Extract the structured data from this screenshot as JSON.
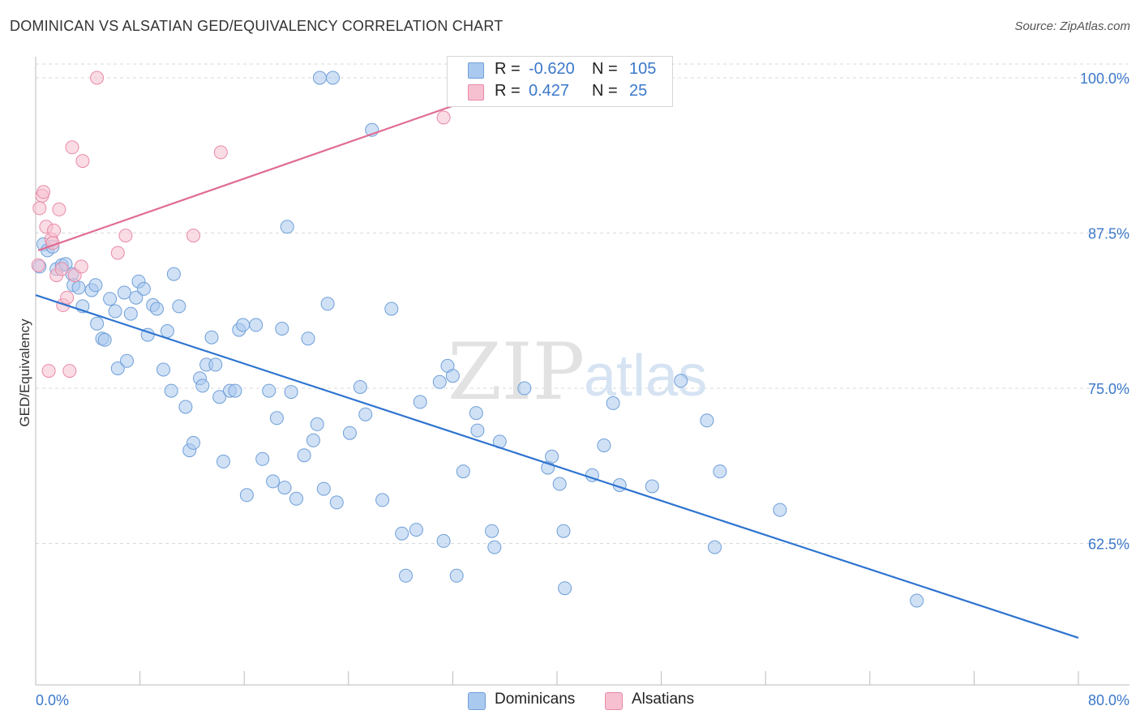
{
  "title": "DOMINICAN VS ALSATIAN GED/EQUIVALENCY CORRELATION CHART",
  "source": "Source: ZipAtlas.com",
  "watermark": {
    "zip": "ZIP",
    "atlas": "atlas"
  },
  "colors": {
    "dominican_fill": "#aac9ef",
    "dominican_stroke": "#6f9fd8",
    "dominican_line": "#2e74d0",
    "alsatian_fill": "#f6c0d0",
    "alsatian_stroke": "#e88aa6",
    "alsatian_line": "#e06c93",
    "accent_text": "#3b78c9",
    "grid": "#d9d9d9"
  },
  "legend": {
    "rows": [
      {
        "series": "Dominicans",
        "r_label": "R =",
        "r_value": "-0.620",
        "n_label": "N =",
        "n_value": "105"
      },
      {
        "series": "Alsatians",
        "r_label": "R =",
        "r_value": "0.427",
        "n_label": "N =",
        "n_value": "25"
      }
    ]
  },
  "chart_data": {
    "type": "scatter",
    "title": "DOMINICAN VS ALSATIAN GED/EQUIVALENCY CORRELATION CHART",
    "xlabel": "",
    "ylabel": "GED/Equivalency",
    "xlim": [
      0,
      80
    ],
    "ylim": [
      50,
      102
    ],
    "x_tick_labels": [
      "0.0%",
      "80.0%"
    ],
    "y_ticks": [
      62.5,
      75.0,
      87.5,
      100.0
    ],
    "y_tick_labels": [
      "62.5%",
      "75.0%",
      "87.5%",
      "100.0%"
    ],
    "grid": true,
    "legend_position": "bottom",
    "series": [
      {
        "name": "Dominicans",
        "trendline": {
          "x": [
            0,
            80
          ],
          "y": [
            82.5,
            54.9
          ]
        },
        "points": [
          [
            0.3,
            84.8
          ],
          [
            0.6,
            86.6
          ],
          [
            0.9,
            86.1
          ],
          [
            1.3,
            86.4
          ],
          [
            1.6,
            84.6
          ],
          [
            2.0,
            84.9
          ],
          [
            2.3,
            85.0
          ],
          [
            2.8,
            84.2
          ],
          [
            2.9,
            83.3
          ],
          [
            3.3,
            83.1
          ],
          [
            3.6,
            81.6
          ],
          [
            4.3,
            82.9
          ],
          [
            4.6,
            83.3
          ],
          [
            4.7,
            80.2
          ],
          [
            5.1,
            79.0
          ],
          [
            5.3,
            78.9
          ],
          [
            5.7,
            82.2
          ],
          [
            6.1,
            81.2
          ],
          [
            6.3,
            76.6
          ],
          [
            6.8,
            82.7
          ],
          [
            7.0,
            77.2
          ],
          [
            7.3,
            81.0
          ],
          [
            7.7,
            82.3
          ],
          [
            7.9,
            83.6
          ],
          [
            8.3,
            83.0
          ],
          [
            8.6,
            79.3
          ],
          [
            9.0,
            81.7
          ],
          [
            9.3,
            81.4
          ],
          [
            9.8,
            76.5
          ],
          [
            10.1,
            79.6
          ],
          [
            10.4,
            74.8
          ],
          [
            10.6,
            84.2
          ],
          [
            11.0,
            81.6
          ],
          [
            11.5,
            73.5
          ],
          [
            11.8,
            70.0
          ],
          [
            12.1,
            70.6
          ],
          [
            12.6,
            75.8
          ],
          [
            12.8,
            75.2
          ],
          [
            13.1,
            76.9
          ],
          [
            13.5,
            79.1
          ],
          [
            13.8,
            76.9
          ],
          [
            14.1,
            74.3
          ],
          [
            14.4,
            69.1
          ],
          [
            14.9,
            74.8
          ],
          [
            15.3,
            74.8
          ],
          [
            15.6,
            79.7
          ],
          [
            15.9,
            80.1
          ],
          [
            16.2,
            66.4
          ],
          [
            16.9,
            80.1
          ],
          [
            17.4,
            69.3
          ],
          [
            17.9,
            74.8
          ],
          [
            18.2,
            67.5
          ],
          [
            18.5,
            72.6
          ],
          [
            18.9,
            79.8
          ],
          [
            19.1,
            67.0
          ],
          [
            19.3,
            88.0
          ],
          [
            19.6,
            74.7
          ],
          [
            20.0,
            66.1
          ],
          [
            20.6,
            69.6
          ],
          [
            20.9,
            79.0
          ],
          [
            21.3,
            70.8
          ],
          [
            21.6,
            72.1
          ],
          [
            21.8,
            100.0
          ],
          [
            22.1,
            66.9
          ],
          [
            22.4,
            81.8
          ],
          [
            22.8,
            100.0
          ],
          [
            23.1,
            65.8
          ],
          [
            24.1,
            71.4
          ],
          [
            24.9,
            75.1
          ],
          [
            25.3,
            72.9
          ],
          [
            25.8,
            95.8
          ],
          [
            26.6,
            66.0
          ],
          [
            27.3,
            81.4
          ],
          [
            28.1,
            63.3
          ],
          [
            28.4,
            59.9
          ],
          [
            29.2,
            63.6
          ],
          [
            29.5,
            73.9
          ],
          [
            31.0,
            75.5
          ],
          [
            31.3,
            62.7
          ],
          [
            31.6,
            76.8
          ],
          [
            32.0,
            76.0
          ],
          [
            32.3,
            59.9
          ],
          [
            32.8,
            68.3
          ],
          [
            33.8,
            73.0
          ],
          [
            33.9,
            71.6
          ],
          [
            35.0,
            63.5
          ],
          [
            35.2,
            62.2
          ],
          [
            35.6,
            70.7
          ],
          [
            37.5,
            75.0
          ],
          [
            39.3,
            68.6
          ],
          [
            39.6,
            69.5
          ],
          [
            40.2,
            67.3
          ],
          [
            40.5,
            63.5
          ],
          [
            40.6,
            58.9
          ],
          [
            42.7,
            68.0
          ],
          [
            43.6,
            70.4
          ],
          [
            44.3,
            73.8
          ],
          [
            44.8,
            67.2
          ],
          [
            47.3,
            67.1
          ],
          [
            49.5,
            75.6
          ],
          [
            51.5,
            72.4
          ],
          [
            52.1,
            62.2
          ],
          [
            52.5,
            68.3
          ],
          [
            57.1,
            65.2
          ],
          [
            67.6,
            57.9
          ]
        ]
      },
      {
        "name": "Alsatians",
        "trendline": {
          "x": [
            0.2,
            39.0
          ],
          "y": [
            86.1,
            100.3
          ]
        },
        "points": [
          [
            0.2,
            84.9
          ],
          [
            0.3,
            89.5
          ],
          [
            0.5,
            90.5
          ],
          [
            0.6,
            90.8
          ],
          [
            0.8,
            88.0
          ],
          [
            1.0,
            76.4
          ],
          [
            1.2,
            87.0
          ],
          [
            1.3,
            86.7
          ],
          [
            1.4,
            87.7
          ],
          [
            1.6,
            84.1
          ],
          [
            1.8,
            89.4
          ],
          [
            2.0,
            84.6
          ],
          [
            2.1,
            81.7
          ],
          [
            2.4,
            82.3
          ],
          [
            2.6,
            76.4
          ],
          [
            2.8,
            94.4
          ],
          [
            3.0,
            84.1
          ],
          [
            3.5,
            84.8
          ],
          [
            3.6,
            93.3
          ],
          [
            4.7,
            100.0
          ],
          [
            6.3,
            85.9
          ],
          [
            6.9,
            87.3
          ],
          [
            12.1,
            87.3
          ],
          [
            14.2,
            94.0
          ],
          [
            31.3,
            96.8
          ]
        ]
      }
    ]
  }
}
